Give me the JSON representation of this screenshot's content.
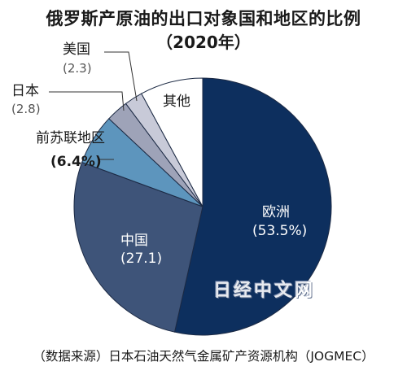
{
  "chart_data": {
    "type": "pie",
    "title": "俄罗斯产原油的出口对象国和地区的比例",
    "subtitle": "（2020年）",
    "unit": "%",
    "slices": [
      {
        "label": "欧洲",
        "value": 53.5,
        "value_label": "(53.5%)",
        "color": "#0d2f5e"
      },
      {
        "label": "中国",
        "value": 27.1,
        "value_label": "(27.1)",
        "color": "#3e5479"
      },
      {
        "label": "前苏联地区",
        "value": 6.4,
        "value_label": "(6.4%)",
        "color": "#5d95bd"
      },
      {
        "label": "日本",
        "value": 2.8,
        "value_label": "(2.8)",
        "color": "#9ea3b8"
      },
      {
        "label": "美国",
        "value": 2.3,
        "value_label": "(2.3)",
        "color": "#c8cad8"
      },
      {
        "label": "其他",
        "value": 7.9,
        "value_label": "",
        "color": "#ffffff"
      }
    ],
    "source": "（数据来源）日本石油天然气金属矿产资源机构（JOGMEC）",
    "watermark": "日经中文网"
  }
}
